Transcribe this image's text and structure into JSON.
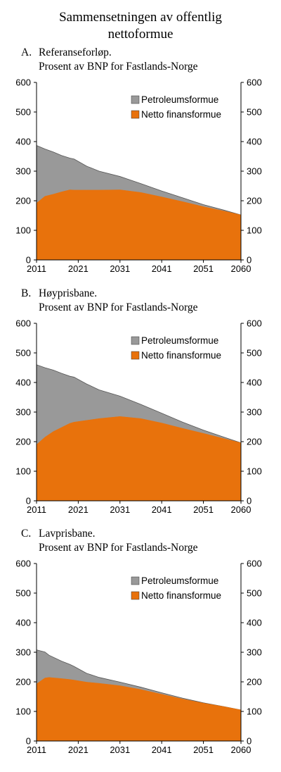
{
  "figure": {
    "title_line1": "Sammensetningen av offentlig",
    "title_line2": "nettoformue"
  },
  "colors": {
    "petroleum": "#999999",
    "finance": "#e8720c",
    "axis": "#000000"
  },
  "chart_data": [
    {
      "type": "area",
      "panel_label": "A.",
      "subtitle_line1": "Referanseforløp.",
      "subtitle_line2": "Prosent av BNP for Fastlands-Norge",
      "xlim": [
        2011,
        2060
      ],
      "ylim": [
        0,
        600
      ],
      "yticks": [
        0,
        100,
        200,
        300,
        400,
        500,
        600
      ],
      "xticks": [
        2011,
        2021,
        2031,
        2041,
        2051,
        2060
      ],
      "grid": false,
      "legend": "top-right",
      "stacked": true,
      "x": [
        2011,
        2013,
        2015,
        2017,
        2019,
        2020,
        2023,
        2026,
        2031,
        2036,
        2041,
        2046,
        2051,
        2056,
        2060
      ],
      "series": [
        {
          "name": "Netto finansformue",
          "values": [
            192,
            215,
            222,
            230,
            237,
            236,
            236,
            236,
            237,
            228,
            213,
            197,
            180,
            165,
            152
          ]
        },
        {
          "name": "Petroleumsformue",
          "values": [
            195,
            160,
            143,
            123,
            107,
            105,
            81,
            64,
            45,
            30,
            20,
            13,
            7,
            3,
            0
          ]
        }
      ]
    },
    {
      "type": "area",
      "panel_label": "B.",
      "subtitle_line1": "Høyprisbane.",
      "subtitle_line2": "Prosent av BNP for Fastlands-Norge",
      "xlim": [
        2011,
        2060
      ],
      "ylim": [
        0,
        600
      ],
      "yticks": [
        0,
        100,
        200,
        300,
        400,
        500,
        600
      ],
      "xticks": [
        2011,
        2021,
        2031,
        2041,
        2051,
        2060
      ],
      "grid": false,
      "legend": "top-right",
      "stacked": true,
      "x": [
        2011,
        2013,
        2015,
        2017,
        2019,
        2020,
        2023,
        2026,
        2031,
        2036,
        2041,
        2046,
        2051,
        2056,
        2060
      ],
      "series": [
        {
          "name": "Netto finansformue",
          "values": [
            190,
            215,
            234,
            248,
            262,
            266,
            272,
            278,
            285,
            278,
            263,
            245,
            228,
            210,
            196
          ]
        },
        {
          "name": "Petroleumsformue",
          "values": [
            270,
            235,
            208,
            183,
            159,
            152,
            123,
            97,
            69,
            48,
            33,
            21,
            11,
            5,
            0
          ]
        }
      ]
    },
    {
      "type": "area",
      "panel_label": "C.",
      "subtitle_line1": "Lavprisbane.",
      "subtitle_line2": "Prosent av BNP for Fastlands-Norge",
      "xlim": [
        2011,
        2060
      ],
      "ylim": [
        0,
        600
      ],
      "yticks": [
        0,
        100,
        200,
        300,
        400,
        500,
        600
      ],
      "xticks": [
        2011,
        2021,
        2031,
        2041,
        2051,
        2060
      ],
      "grid": false,
      "legend": "top-right",
      "stacked": true,
      "x": [
        2011,
        2013,
        2014,
        2017,
        2019,
        2020,
        2023,
        2026,
        2031,
        2036,
        2041,
        2046,
        2051,
        2056,
        2060
      ],
      "series": [
        {
          "name": "Netto finansformue",
          "values": [
            193,
            213,
            215,
            211,
            208,
            206,
            199,
            195,
            187,
            174,
            158,
            142,
            128,
            116,
            105
          ]
        },
        {
          "name": "Petroleumsformue",
          "values": [
            115,
            88,
            75,
            59,
            51,
            46,
            30,
            20,
            12,
            8,
            5,
            3,
            1,
            0,
            0
          ]
        }
      ]
    }
  ]
}
